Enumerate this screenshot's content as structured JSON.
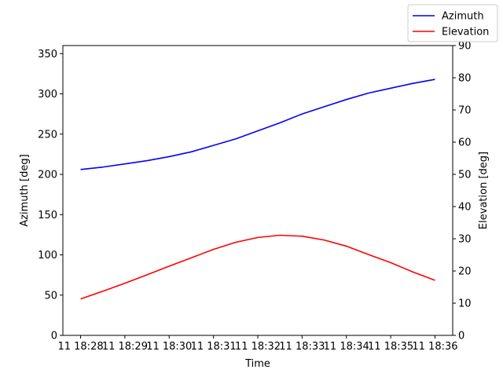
{
  "chart_data": {
    "type": "line",
    "xlabel": "Time",
    "ylabel_left": "Azimuth [deg]",
    "ylabel_right": "Elevation [deg]",
    "x": [
      "18:28:00",
      "18:28:30",
      "18:29:00",
      "18:29:30",
      "18:30:00",
      "18:30:30",
      "18:31:00",
      "18:31:30",
      "18:32:00",
      "18:32:30",
      "18:33:00",
      "18:33:30",
      "18:34:00",
      "18:34:30",
      "18:35:00",
      "18:35:30",
      "18:36:00"
    ],
    "x_ticks": [
      "11 18:28",
      "11 18:29",
      "11 18:30",
      "11 18:31",
      "11 18:32",
      "11 18:33",
      "11 18:34",
      "11 18:35",
      "11 18:36"
    ],
    "ylim_left": [
      0,
      360
    ],
    "yticks_left": [
      "0",
      "50",
      "100",
      "150",
      "200",
      "250",
      "300",
      "350"
    ],
    "ylim_right": [
      0,
      90
    ],
    "yticks_right": [
      "0",
      "10",
      "20",
      "30",
      "40",
      "50",
      "60",
      "70",
      "80",
      "90"
    ],
    "grid": false,
    "legend_position": "top-right",
    "series": [
      {
        "name": "Azimuth",
        "color": "#0000ff",
        "axis": "left",
        "values": [
          206,
          209,
          213,
          217,
          222,
          228,
          236,
          244,
          254,
          264,
          275,
          284,
          293,
          301,
          307,
          313,
          318
        ]
      },
      {
        "name": "Elevation",
        "color": "#ff0000",
        "axis": "right",
        "values": [
          11.3,
          13.7,
          16.2,
          18.8,
          21.5,
          24.1,
          26.7,
          28.9,
          30.4,
          31.1,
          30.8,
          29.6,
          27.7,
          25.1,
          22.6,
          19.7,
          17.1
        ]
      }
    ]
  }
}
